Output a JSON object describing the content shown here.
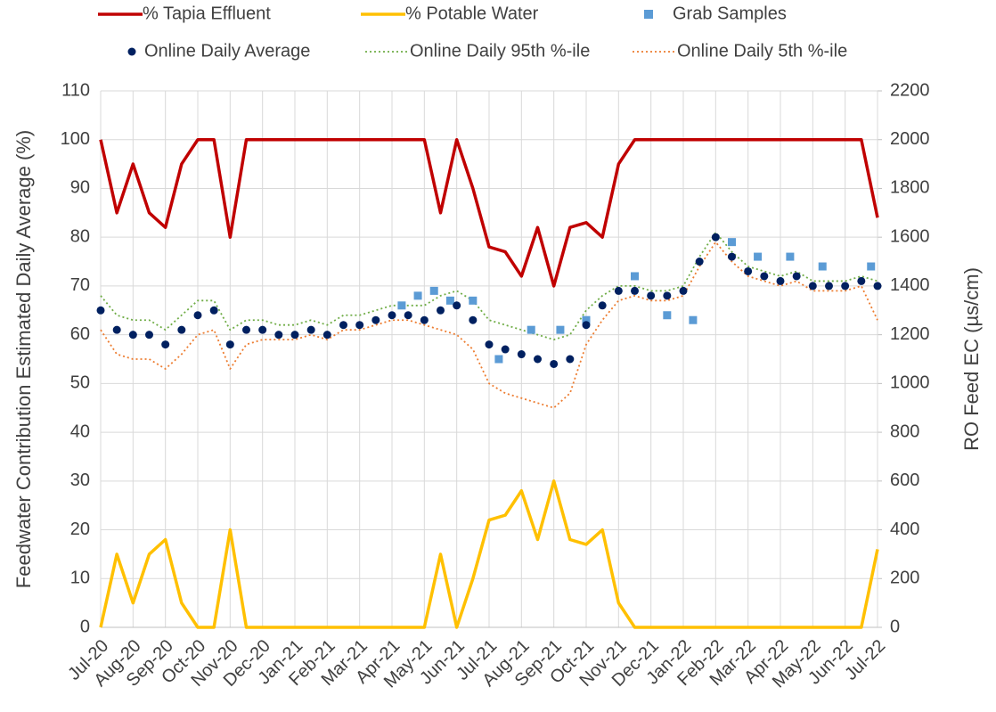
{
  "chart_data": {
    "type": "line",
    "y_label": "Feedwater Contribution Estimated Daily Average (%)",
    "y2_label": "RO Feed EC (µs/cm)",
    "xlim": [
      0,
      24
    ],
    "xticks": [
      {
        "value": 0,
        "label": "Jul-20"
      },
      {
        "value": 1,
        "label": "Aug-20"
      },
      {
        "value": 2,
        "label": "Sep-20"
      },
      {
        "value": 3,
        "label": "Oct-20"
      },
      {
        "value": 4,
        "label": "Nov-20"
      },
      {
        "value": 5,
        "label": "Dec-20"
      },
      {
        "value": 6,
        "label": "Jan-21"
      },
      {
        "value": 7,
        "label": "Feb-21"
      },
      {
        "value": 8,
        "label": "Mar-21"
      },
      {
        "value": 9,
        "label": "Apr-21"
      },
      {
        "value": 10,
        "label": "May-21"
      },
      {
        "value": 11,
        "label": "Jun-21"
      },
      {
        "value": 12,
        "label": "Jul-21"
      },
      {
        "value": 13,
        "label": "Aug-21"
      },
      {
        "value": 14,
        "label": "Sep-21"
      },
      {
        "value": 15,
        "label": "Oct-21"
      },
      {
        "value": 16,
        "label": "Nov-21"
      },
      {
        "value": 17,
        "label": "Dec-21"
      },
      {
        "value": 18,
        "label": "Jan-22"
      },
      {
        "value": 19,
        "label": "Feb-22"
      },
      {
        "value": 20,
        "label": "Mar-22"
      },
      {
        "value": 21,
        "label": "Apr-22"
      },
      {
        "value": 22,
        "label": "May-22"
      },
      {
        "value": 23,
        "label": "Jun-22"
      },
      {
        "value": 24,
        "label": "Jul-22"
      }
    ],
    "ylim": [
      0,
      110
    ],
    "yticks": [
      0,
      10,
      20,
      30,
      40,
      50,
      60,
      70,
      80,
      90,
      100,
      110
    ],
    "y2lim": [
      0,
      2200
    ],
    "y2ticks": [
      0,
      200,
      400,
      600,
      800,
      1000,
      1200,
      1400,
      1600,
      1800,
      2000,
      2200
    ],
    "grid": true,
    "x": [
      0,
      0.5,
      1,
      1.5,
      2,
      2.5,
      3,
      3.5,
      4,
      4.5,
      5,
      5.5,
      6,
      6.5,
      7,
      7.5,
      8,
      8.5,
      9,
      9.5,
      10,
      10.5,
      11,
      11.5,
      12,
      12.5,
      13,
      13.5,
      14,
      14.5,
      15,
      15.5,
      16,
      16.5,
      17,
      17.5,
      18,
      18.5,
      19,
      19.5,
      20,
      20.5,
      21,
      21.5,
      22,
      22.5,
      23,
      23.5,
      24
    ],
    "series": [
      {
        "name": "% Tapia Effluent",
        "color": "#c00000",
        "style": "line",
        "values": [
          100,
          85,
          95,
          85,
          82,
          95,
          100,
          100,
          80,
          100,
          100,
          100,
          100,
          100,
          100,
          100,
          100,
          100,
          100,
          100,
          100,
          85,
          100,
          90,
          78,
          77,
          72,
          82,
          70,
          82,
          83,
          80,
          95,
          100,
          100,
          100,
          100,
          100,
          100,
          100,
          100,
          100,
          100,
          100,
          100,
          100,
          100,
          100,
          84
        ]
      },
      {
        "name": "% Potable Water",
        "color": "#ffc000",
        "style": "line",
        "values": [
          0,
          15,
          5,
          15,
          18,
          5,
          0,
          0,
          20,
          0,
          0,
          0,
          0,
          0,
          0,
          0,
          0,
          0,
          0,
          0,
          0,
          15,
          0,
          10,
          22,
          23,
          28,
          18,
          30,
          18,
          17,
          20,
          5,
          0,
          0,
          0,
          0,
          0,
          0,
          0,
          0,
          0,
          0,
          0,
          0,
          0,
          0,
          0,
          16
        ]
      },
      {
        "name": "Grab Samples",
        "color": "#5b9bd5",
        "style": "square",
        "axis": "y2",
        "x": [
          9.3,
          9.8,
          10.3,
          10.8,
          11.5,
          12.3,
          13.3,
          14.2,
          15.0,
          16.5,
          17.5,
          18.3,
          19.5,
          20.3,
          21.3,
          22.3,
          23.8
        ],
        "values": [
          1320,
          1360,
          1380,
          1340,
          1340,
          1100,
          1220,
          1220,
          1260,
          1440,
          1280,
          1260,
          1580,
          1520,
          1520,
          1480,
          1480
        ]
      },
      {
        "name": "Online Daily Average",
        "color": "#002060",
        "style": "circle",
        "axis": "y2",
        "values": [
          1300,
          1220,
          1200,
          1200,
          1160,
          1220,
          1280,
          1300,
          1160,
          1220,
          1220,
          1200,
          1200,
          1220,
          1200,
          1240,
          1240,
          1260,
          1280,
          1280,
          1260,
          1300,
          1320,
          1260,
          1160,
          1140,
          1120,
          1100,
          1080,
          1100,
          1240,
          1320,
          1380,
          1380,
          1360,
          1360,
          1380,
          1500,
          1600,
          1520,
          1460,
          1440,
          1420,
          1440,
          1400,
          1400,
          1400,
          1420,
          1400
        ]
      },
      {
        "name": "Online Daily 95th %-ile",
        "color": "#70ad47",
        "style": "dotted",
        "axis": "y2",
        "values": [
          1360,
          1280,
          1260,
          1260,
          1220,
          1280,
          1340,
          1340,
          1220,
          1260,
          1260,
          1240,
          1240,
          1260,
          1240,
          1280,
          1280,
          1300,
          1320,
          1320,
          1320,
          1360,
          1380,
          1340,
          1260,
          1240,
          1220,
          1200,
          1180,
          1200,
          1300,
          1360,
          1400,
          1400,
          1380,
          1380,
          1400,
          1520,
          1620,
          1540,
          1480,
          1460,
          1440,
          1460,
          1420,
          1420,
          1420,
          1440,
          1420
        ]
      },
      {
        "name": "Online Daily 5th %-ile",
        "color": "#ed7d31",
        "style": "dotted",
        "axis": "y2",
        "values": [
          1220,
          1120,
          1100,
          1100,
          1060,
          1120,
          1200,
          1220,
          1060,
          1160,
          1180,
          1180,
          1180,
          1200,
          1180,
          1220,
          1220,
          1240,
          1260,
          1260,
          1240,
          1220,
          1200,
          1140,
          1000,
          960,
          940,
          920,
          900,
          960,
          1160,
          1260,
          1340,
          1360,
          1340,
          1340,
          1360,
          1480,
          1580,
          1500,
          1440,
          1420,
          1400,
          1420,
          1380,
          1380,
          1380,
          1400,
          1260
        ]
      }
    ]
  }
}
